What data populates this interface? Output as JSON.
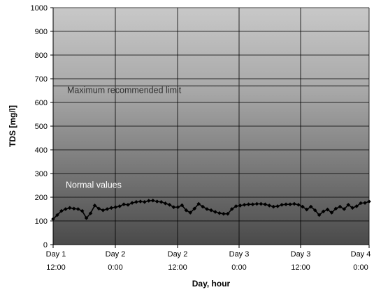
{
  "chart_data": {
    "type": "line",
    "xlabel": "Day, hour",
    "ylabel": "TDS [mg/l]",
    "ylim": [
      0,
      1000
    ],
    "y_ticks": [
      0,
      100,
      200,
      300,
      400,
      500,
      600,
      700,
      800,
      900,
      1000
    ],
    "grid": true,
    "x_tick_labels": [
      {
        "day": "Day 1",
        "hour": "12:00"
      },
      {
        "day": "Day 2",
        "hour": "0:00"
      },
      {
        "day": "Day 2",
        "hour": "12:00"
      },
      {
        "day": "Day 3",
        "hour": "0:00"
      },
      {
        "day": "Day 3",
        "hour": "12:00"
      },
      {
        "day": "Day 4",
        "hour": "0:00"
      }
    ],
    "limit_line": {
      "value": 670,
      "color": "#333333"
    },
    "annotations": [
      {
        "text": "Maximum recommended limit",
        "color": "#303030",
        "y": 640
      },
      {
        "text": "Normal values",
        "color": "#ffffff",
        "y": 240
      }
    ],
    "series": [
      {
        "color": "#000000",
        "values": [
          108,
          125,
          142,
          150,
          155,
          152,
          150,
          142,
          112,
          132,
          165,
          152,
          145,
          150,
          155,
          158,
          162,
          170,
          168,
          176,
          180,
          182,
          180,
          185,
          186,
          182,
          180,
          174,
          168,
          158,
          158,
          166,
          145,
          135,
          152,
          172,
          160,
          150,
          145,
          138,
          133,
          130,
          130,
          150,
          162,
          165,
          168,
          170,
          170,
          172,
          172,
          170,
          165,
          160,
          162,
          168,
          170,
          170,
          172,
          168,
          160,
          148,
          160,
          145,
          125,
          140,
          148,
          135,
          152,
          160,
          150,
          168,
          155,
          162,
          175,
          176,
          182
        ]
      }
    ]
  }
}
